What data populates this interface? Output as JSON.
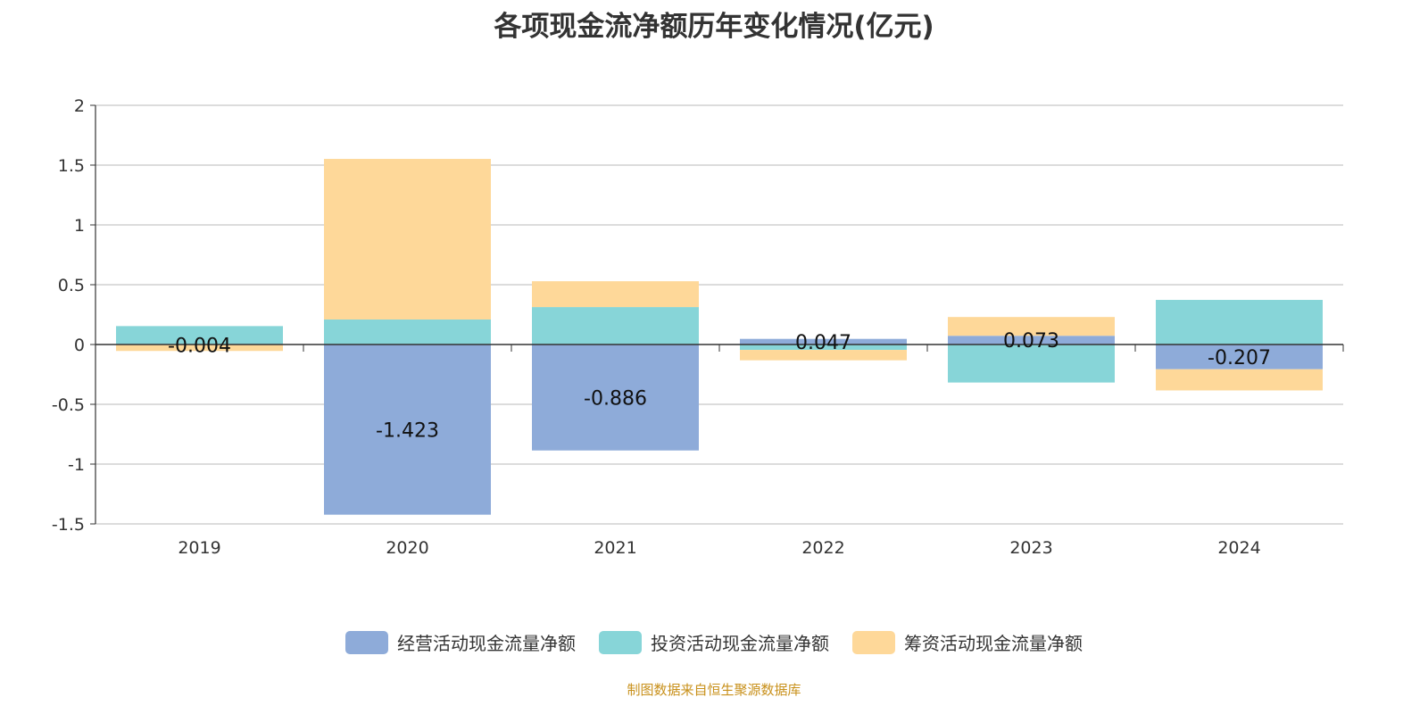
{
  "title": "各项现金流净额历年变化情况(亿元)",
  "source": "制图数据来自恒生聚源数据库",
  "chart_data": {
    "type": "bar",
    "stacked": true,
    "title": "各项现金流净额历年变化情况(亿元)",
    "categories": [
      "2019",
      "2020",
      "2021",
      "2022",
      "2023",
      "2024"
    ],
    "ylim": [
      -1.5,
      2
    ],
    "yticks": [
      2,
      1.5,
      1,
      0.5,
      0,
      -0.5,
      -1,
      -1.5
    ],
    "ytick_labels": [
      "2",
      "1.5",
      "1",
      "0.5",
      "0",
      "-0.5",
      "-1",
      "-1.5"
    ],
    "grid": true,
    "legend_position": "bottom",
    "series": [
      {
        "name": "经营活动现金流量净额",
        "color": "#8eabd9",
        "values": [
          -0.004,
          -1.423,
          -0.886,
          0.047,
          0.073,
          -0.207
        ],
        "labels": [
          "-0.004",
          "-1.423",
          "-0.886",
          "0.047",
          "0.073",
          "-0.207"
        ]
      },
      {
        "name": "投资活动现金流量净额",
        "color": "#87d5d8",
        "values": [
          0.154,
          0.209,
          0.313,
          -0.045,
          -0.318,
          0.373
        ]
      },
      {
        "name": "筹资活动现金流量净额",
        "color": "#fed899",
        "values": [
          -0.05,
          1.343,
          0.216,
          -0.087,
          0.157,
          -0.177
        ]
      }
    ]
  }
}
